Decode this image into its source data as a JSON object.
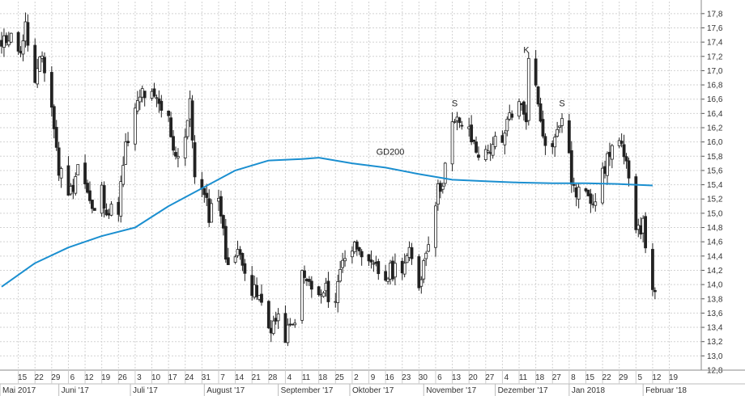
{
  "chart_data": {
    "type": "candlestick",
    "title": "",
    "xlabel": "",
    "ylabel": "",
    "ylim": [
      12.8,
      17.9
    ],
    "y_ticks": [
      12.8,
      13.0,
      13.2,
      13.4,
      13.6,
      13.8,
      14.0,
      14.2,
      14.4,
      14.6,
      14.8,
      15.0,
      15.2,
      15.4,
      15.6,
      15.8,
      16.0,
      16.2,
      16.4,
      16.6,
      16.8,
      17.0,
      17.2,
      17.4,
      17.6,
      17.8
    ],
    "day_labels": [
      "15",
      "22",
      "29",
      "6",
      "12",
      "19",
      "26",
      "3",
      "10",
      "17",
      "24",
      "31",
      "7",
      "14",
      "21",
      "28",
      "4",
      "11",
      "18",
      "25",
      "2",
      "9",
      "16",
      "23",
      "30",
      "6",
      "13",
      "20",
      "27",
      "4",
      "11",
      "18",
      "27",
      "8",
      "15",
      "22",
      "29",
      "5",
      "12",
      "19"
    ],
    "month_labels": [
      "Mai 2017",
      "Juni '17",
      "Juli '17",
      "August '17",
      "September '17",
      "Oktober '17",
      "November '17",
      "Dezember '17",
      "Jan 2018",
      "Februar '18"
    ],
    "annotations": [
      "S",
      "K",
      "S",
      "GD200"
    ],
    "x_range": [
      "2017-05-08",
      "2018-02-22"
    ],
    "grid": true,
    "colors": {
      "candle": "#222222",
      "gd200": "#1b8fd0",
      "grid": "#d2d2d2"
    },
    "ohlc_path": [
      [
        "2017-05-08",
        17.3
      ],
      [
        "2017-05-12",
        17.6
      ],
      [
        "2017-05-15",
        17.2
      ],
      [
        "2017-05-18",
        17.6
      ],
      [
        "2017-05-22",
        16.8
      ],
      [
        "2017-05-25",
        17.2
      ],
      [
        "2017-05-29",
        16.5
      ],
      [
        "2017-06-01",
        15.6
      ],
      [
        "2017-06-06",
        15.3
      ],
      [
        "2017-06-09",
        15.7
      ],
      [
        "2017-06-12",
        15.4
      ],
      [
        "2017-06-15",
        15.0
      ],
      [
        "2017-06-19",
        15.3
      ],
      [
        "2017-06-22",
        15.0
      ],
      [
        "2017-06-26",
        15.1
      ],
      [
        "2017-06-29",
        15.9
      ],
      [
        "2017-07-03",
        16.4
      ],
      [
        "2017-07-06",
        16.7
      ],
      [
        "2017-07-10",
        16.6
      ],
      [
        "2017-07-13",
        16.5
      ],
      [
        "2017-07-17",
        16.3
      ],
      [
        "2017-07-20",
        15.8
      ],
      [
        "2017-07-24",
        16.1
      ],
      [
        "2017-07-26",
        16.5
      ],
      [
        "2017-07-28",
        15.6
      ],
      [
        "2017-07-31",
        15.3
      ],
      [
        "2017-08-03",
        15.0
      ],
      [
        "2017-08-07",
        15.3
      ],
      [
        "2017-08-10",
        14.4
      ],
      [
        "2017-08-14",
        14.4
      ],
      [
        "2017-08-17",
        14.4
      ],
      [
        "2017-08-21",
        13.9
      ],
      [
        "2017-08-24",
        13.8
      ],
      [
        "2017-08-28",
        13.4
      ],
      [
        "2017-08-31",
        13.5
      ],
      [
        "2017-09-04",
        13.3
      ],
      [
        "2017-09-07",
        13.4
      ],
      [
        "2017-09-11",
        14.1
      ],
      [
        "2017-09-14",
        14.0
      ],
      [
        "2017-09-18",
        13.8
      ],
      [
        "2017-09-21",
        13.9
      ],
      [
        "2017-09-25",
        13.8
      ],
      [
        "2017-09-28",
        14.4
      ],
      [
        "2017-10-02",
        14.5
      ],
      [
        "2017-10-05",
        14.6
      ],
      [
        "2017-10-09",
        14.2
      ],
      [
        "2017-10-12",
        14.2
      ],
      [
        "2017-10-16",
        14.1
      ],
      [
        "2017-10-19",
        14.2
      ],
      [
        "2017-10-23",
        14.3
      ],
      [
        "2017-10-26",
        14.4
      ],
      [
        "2017-10-30",
        14.0
      ],
      [
        "2017-11-02",
        14.5
      ],
      [
        "2017-11-06",
        15.2
      ],
      [
        "2017-11-09",
        15.5
      ],
      [
        "2017-11-13",
        16.2
      ],
      [
        "2017-11-16",
        16.3
      ],
      [
        "2017-11-20",
        16.1
      ],
      [
        "2017-11-23",
        15.9
      ],
      [
        "2017-11-27",
        15.8
      ],
      [
        "2017-11-30",
        16.0
      ],
      [
        "2017-12-04",
        15.9
      ],
      [
        "2017-12-07",
        16.4
      ],
      [
        "2017-12-11",
        16.5
      ],
      [
        "2017-12-14",
        16.4
      ],
      [
        "2017-12-15",
        17.1
      ],
      [
        "2017-12-18",
        16.8
      ],
      [
        "2017-12-21",
        16.2
      ],
      [
        "2017-12-22",
        15.9
      ],
      [
        "2017-12-27",
        16.1
      ],
      [
        "2017-12-29",
        16.4
      ],
      [
        "2018-01-02",
        15.5
      ],
      [
        "2018-01-04",
        15.2
      ],
      [
        "2018-01-08",
        15.4
      ],
      [
        "2018-01-11",
        15.2
      ],
      [
        "2018-01-15",
        15.5
      ],
      [
        "2018-01-18",
        15.9
      ],
      [
        "2018-01-22",
        16.0
      ],
      [
        "2018-01-25",
        15.6
      ],
      [
        "2018-01-29",
        14.9
      ],
      [
        "2018-02-01",
        14.8
      ],
      [
        "2018-02-05",
        14.0
      ],
      [
        "2018-02-06",
        13.9
      ]
    ],
    "gd200_path": [
      [
        "2017-05-08",
        13.97
      ],
      [
        "2017-05-22",
        14.3
      ],
      [
        "2017-06-05",
        14.52
      ],
      [
        "2017-06-19",
        14.68
      ],
      [
        "2017-07-03",
        14.8
      ],
      [
        "2017-07-17",
        15.1
      ],
      [
        "2017-07-31",
        15.35
      ],
      [
        "2017-08-14",
        15.6
      ],
      [
        "2017-08-28",
        15.74
      ],
      [
        "2017-09-11",
        15.76
      ],
      [
        "2017-09-18",
        15.78
      ],
      [
        "2017-10-02",
        15.7
      ],
      [
        "2017-10-16",
        15.64
      ],
      [
        "2017-10-30",
        15.55
      ],
      [
        "2017-11-13",
        15.47
      ],
      [
        "2017-11-27",
        15.45
      ],
      [
        "2017-12-11",
        15.43
      ],
      [
        "2017-12-25",
        15.42
      ],
      [
        "2018-01-08",
        15.42
      ],
      [
        "2018-01-22",
        15.41
      ],
      [
        "2018-02-05",
        15.39
      ]
    ]
  }
}
